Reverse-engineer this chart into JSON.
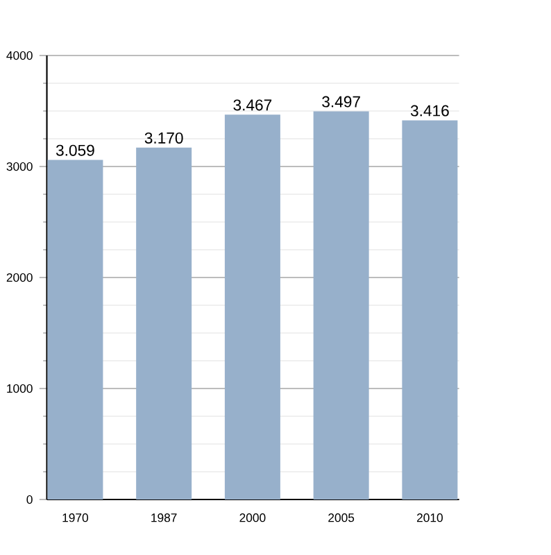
{
  "chart_data": {
    "type": "bar",
    "categories": [
      "1970",
      "1987",
      "2000",
      "2005",
      "2010"
    ],
    "values": [
      3059,
      3170,
      3467,
      3497,
      3416
    ],
    "value_labels": [
      "3.059",
      "3.170",
      "3.467",
      "3.497",
      "3.416"
    ],
    "color": "#97b0cb",
    "ylim": [
      0,
      4000
    ],
    "yticks": [
      0,
      1000,
      2000,
      3000,
      4000
    ],
    "grid": "y"
  }
}
